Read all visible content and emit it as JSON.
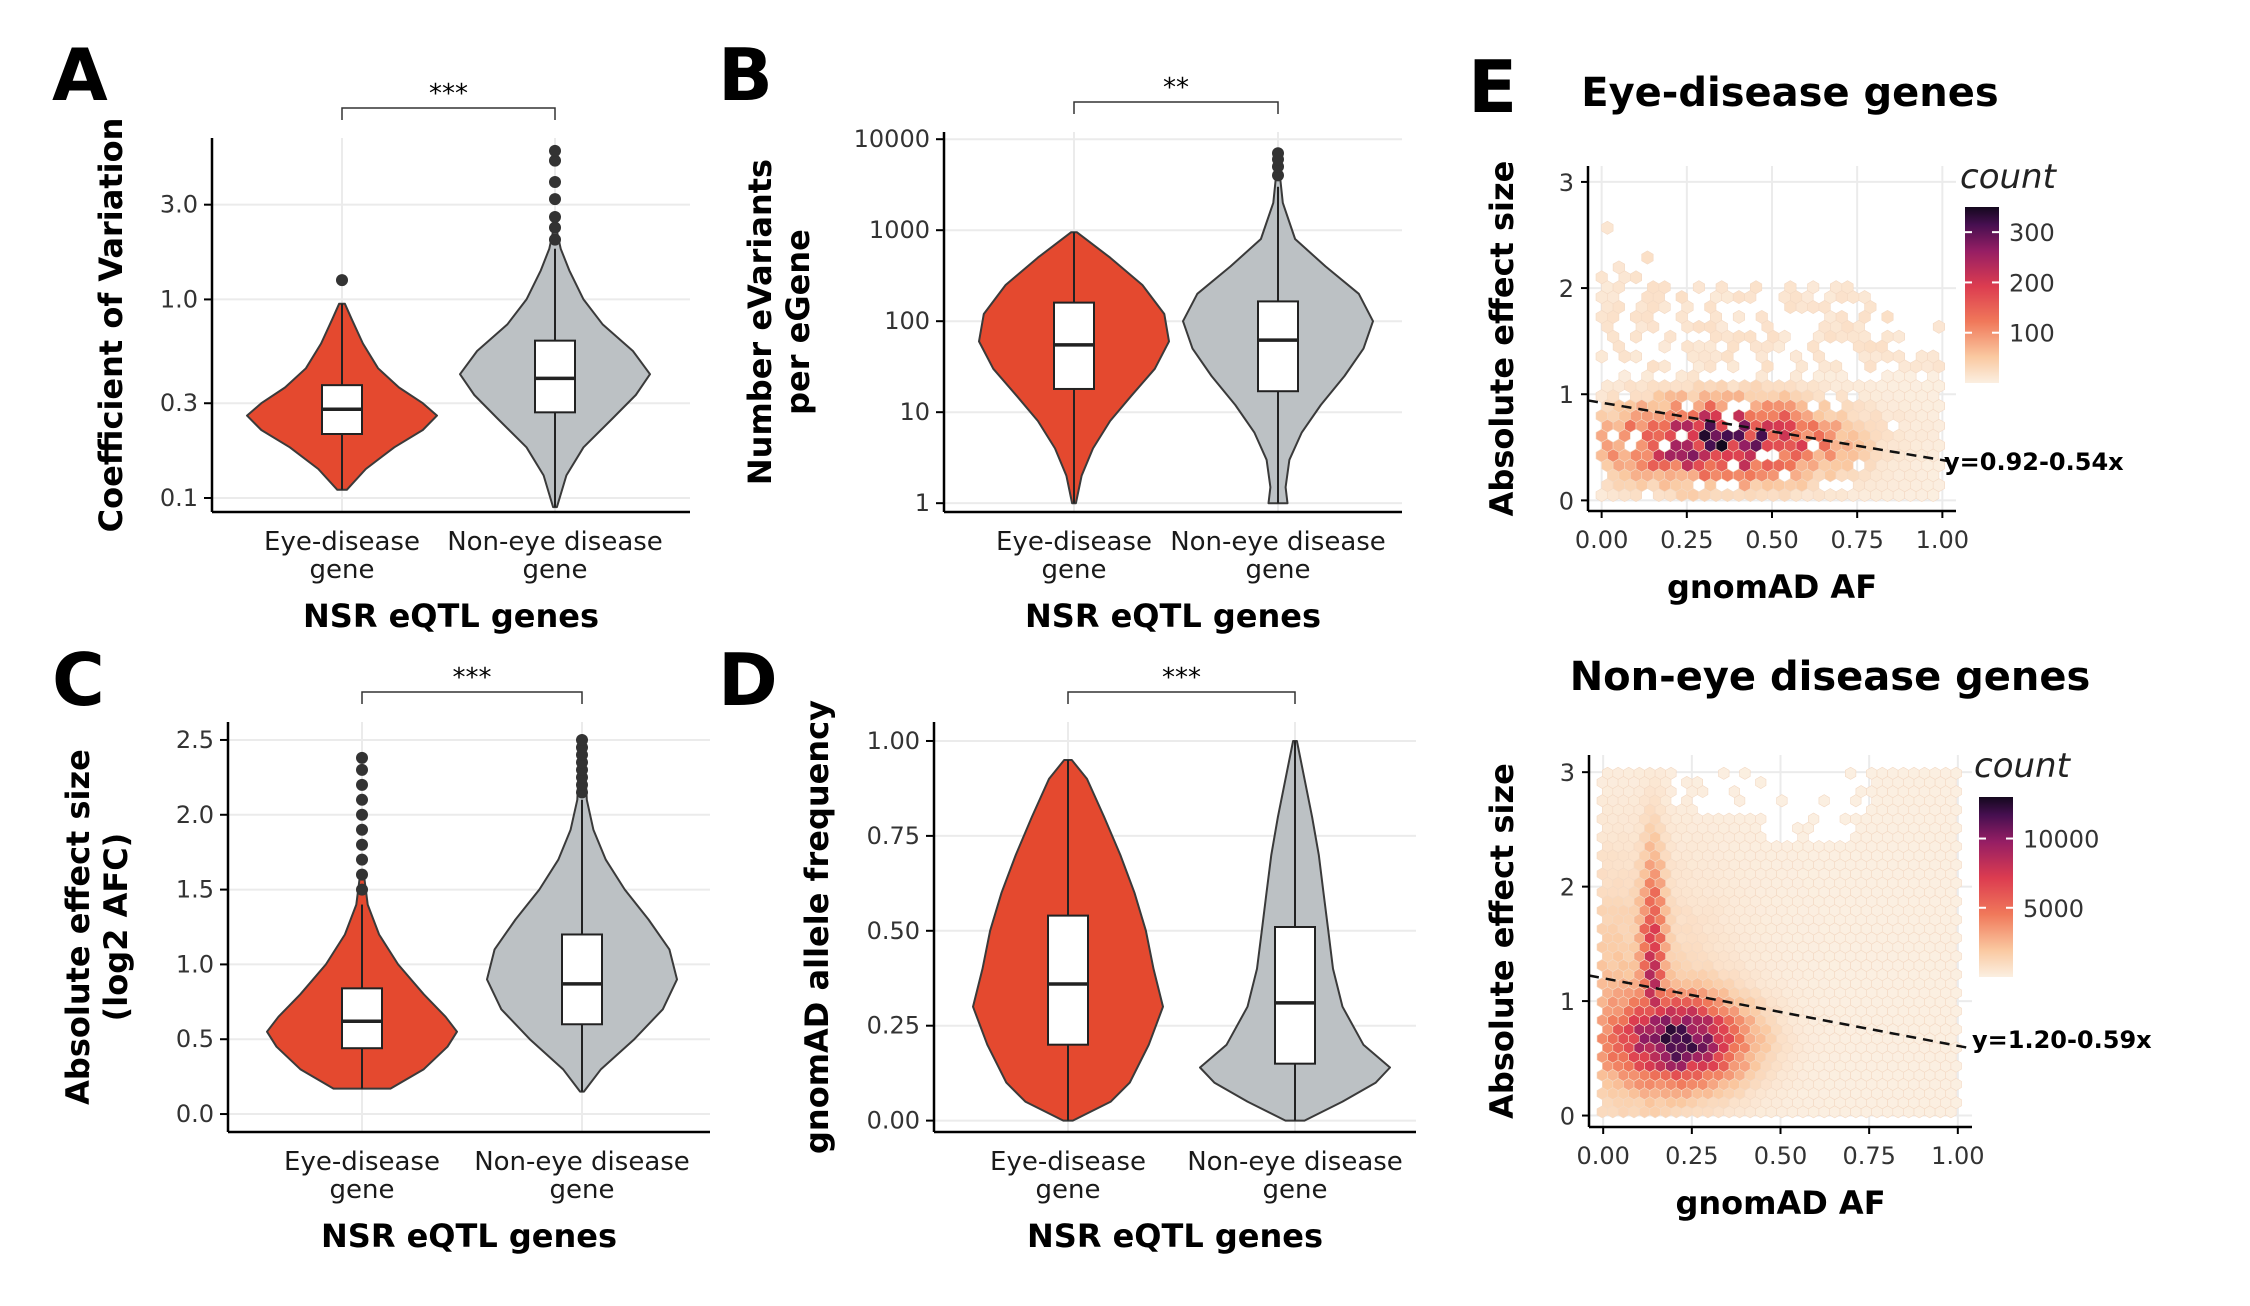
{
  "colors": {
    "eye": "#e4492f",
    "noneye": "#bcc1c4",
    "outline": "#3a3a3a",
    "grid": "#ebebeb",
    "box": "#ffffff"
  },
  "chart_data": [
    {
      "panel": "A",
      "type": "violin",
      "scale": "log",
      "ylabel": "Coefficient of Variation",
      "xlabel": "NSR eQTL genes",
      "ylim": [
        0.085,
        6.5
      ],
      "yticks": [
        0.1,
        0.3,
        1.0,
        3.0
      ],
      "ytick_labels": [
        "0.1",
        "0.3",
        "1.0",
        "3.0"
      ],
      "categories": [
        "Eye-disease\ngene",
        "Non-eye disease\ngene"
      ],
      "significance": "***",
      "series": [
        {
          "name": "Eye-disease gene",
          "min": 0.11,
          "q1": 0.21,
          "median": 0.28,
          "q3": 0.37,
          "max": 0.95,
          "outliers": [
            1.25
          ],
          "density": [
            [
              0.11,
              0.05
            ],
            [
              0.14,
              0.25
            ],
            [
              0.18,
              0.55
            ],
            [
              0.22,
              0.85
            ],
            [
              0.26,
              1.0
            ],
            [
              0.3,
              0.85
            ],
            [
              0.36,
              0.6
            ],
            [
              0.45,
              0.38
            ],
            [
              0.6,
              0.22
            ],
            [
              0.8,
              0.1
            ],
            [
              0.95,
              0.03
            ]
          ]
        },
        {
          "name": "Non-eye disease gene",
          "min": 0.09,
          "q1": 0.27,
          "median": 0.4,
          "q3": 0.62,
          "max": 1.8,
          "outliers": [
            2.0,
            2.3,
            2.6,
            3.2,
            3.9,
            5.0,
            5.6
          ],
          "density": [
            [
              0.09,
              0.02
            ],
            [
              0.13,
              0.12
            ],
            [
              0.18,
              0.3
            ],
            [
              0.25,
              0.6
            ],
            [
              0.33,
              0.85
            ],
            [
              0.42,
              1.0
            ],
            [
              0.55,
              0.82
            ],
            [
              0.75,
              0.5
            ],
            [
              1.0,
              0.3
            ],
            [
              1.4,
              0.15
            ],
            [
              1.8,
              0.06
            ],
            [
              2.2,
              0.02
            ]
          ]
        }
      ]
    },
    {
      "panel": "B",
      "type": "violin",
      "scale": "log",
      "ylabel": "Number eVariants\nper eGene",
      "xlabel": "NSR eQTL genes",
      "ylim": [
        0.8,
        12000
      ],
      "yticks": [
        1,
        10,
        100,
        1000,
        10000
      ],
      "ytick_labels": [
        "1",
        "10",
        "100",
        "1000",
        "10000"
      ],
      "categories": [
        "Eye-disease\ngene",
        "Non-eye disease\ngene"
      ],
      "significance": "**",
      "series": [
        {
          "name": "Eye-disease gene",
          "min": 1,
          "q1": 18,
          "median": 55,
          "q3": 160,
          "max": 950,
          "outliers": [],
          "density": [
            [
              1,
              0.02
            ],
            [
              2,
              0.08
            ],
            [
              4,
              0.2
            ],
            [
              8,
              0.38
            ],
            [
              15,
              0.6
            ],
            [
              30,
              0.85
            ],
            [
              60,
              1.0
            ],
            [
              120,
              0.95
            ],
            [
              250,
              0.72
            ],
            [
              500,
              0.38
            ],
            [
              950,
              0.03
            ]
          ]
        },
        {
          "name": "Non-eye disease gene",
          "min": 1,
          "q1": 17,
          "median": 62,
          "q3": 165,
          "max": 3000,
          "outliers": [
            4000,
            5000,
            6000,
            7000
          ],
          "density": [
            [
              1,
              0.1
            ],
            [
              1.5,
              0.08
            ],
            [
              3,
              0.12
            ],
            [
              6,
              0.25
            ],
            [
              12,
              0.45
            ],
            [
              25,
              0.7
            ],
            [
              50,
              0.9
            ],
            [
              100,
              1.0
            ],
            [
              200,
              0.85
            ],
            [
              400,
              0.5
            ],
            [
              800,
              0.18
            ],
            [
              2000,
              0.05
            ],
            [
              4000,
              0.02
            ]
          ]
        }
      ]
    },
    {
      "panel": "C",
      "type": "violin",
      "scale": "linear",
      "ylabel": "Absolute effect size\n(log2 AFC)",
      "xlabel": "NSR eQTL genes",
      "ylim": [
        -0.12,
        2.62
      ],
      "yticks": [
        0.0,
        0.5,
        1.0,
        1.5,
        2.0,
        2.5
      ],
      "ytick_labels": [
        "0.0",
        "0.5",
        "1.0",
        "1.5",
        "2.0",
        "2.5"
      ],
      "categories": [
        "Eye-disease\ngene",
        "Non-eye disease\ngene"
      ],
      "significance": "***",
      "series": [
        {
          "name": "Eye-disease gene",
          "min": 0.17,
          "q1": 0.44,
          "median": 0.62,
          "q3": 0.84,
          "max": 1.4,
          "outliers": [
            1.5,
            1.6,
            1.7,
            1.8,
            1.9,
            2.0,
            2.1,
            2.2,
            2.3,
            2.38
          ],
          "density": [
            [
              0.17,
              0.3
            ],
            [
              0.3,
              0.65
            ],
            [
              0.45,
              0.9
            ],
            [
              0.55,
              1.0
            ],
            [
              0.65,
              0.88
            ],
            [
              0.8,
              0.65
            ],
            [
              1.0,
              0.38
            ],
            [
              1.2,
              0.18
            ],
            [
              1.4,
              0.06
            ],
            [
              1.6,
              0.02
            ]
          ]
        },
        {
          "name": "Non-eye disease gene",
          "min": 0.15,
          "q1": 0.6,
          "median": 0.87,
          "q3": 1.2,
          "max": 2.1,
          "outliers": [
            2.15,
            2.2,
            2.25,
            2.3,
            2.35,
            2.4,
            2.45,
            2.5
          ],
          "density": [
            [
              0.15,
              0.02
            ],
            [
              0.3,
              0.2
            ],
            [
              0.5,
              0.55
            ],
            [
              0.7,
              0.85
            ],
            [
              0.9,
              1.0
            ],
            [
              1.1,
              0.92
            ],
            [
              1.3,
              0.7
            ],
            [
              1.5,
              0.45
            ],
            [
              1.7,
              0.25
            ],
            [
              1.9,
              0.12
            ],
            [
              2.1,
              0.05
            ],
            [
              2.5,
              0.02
            ]
          ]
        }
      ]
    },
    {
      "panel": "D",
      "type": "violin",
      "scale": "linear",
      "ylabel": "gnomAD allele frequency",
      "xlabel": "NSR eQTL genes",
      "ylim": [
        -0.03,
        1.05
      ],
      "yticks": [
        0.0,
        0.25,
        0.5,
        0.75,
        1.0
      ],
      "ytick_labels": [
        "0.00",
        "0.25",
        "0.50",
        "0.75",
        "1.00"
      ],
      "categories": [
        "Eye-disease\ngene",
        "Non-eye disease\ngene"
      ],
      "significance": "***",
      "series": [
        {
          "name": "Eye-disease gene",
          "min": 0.0,
          "q1": 0.2,
          "median": 0.36,
          "q3": 0.54,
          "max": 0.95,
          "outliers": [],
          "density": [
            [
              0.0,
              0.05
            ],
            [
              0.05,
              0.45
            ],
            [
              0.1,
              0.65
            ],
            [
              0.2,
              0.85
            ],
            [
              0.3,
              1.0
            ],
            [
              0.4,
              0.9
            ],
            [
              0.5,
              0.82
            ],
            [
              0.6,
              0.7
            ],
            [
              0.7,
              0.55
            ],
            [
              0.8,
              0.38
            ],
            [
              0.9,
              0.2
            ],
            [
              0.95,
              0.04
            ]
          ]
        },
        {
          "name": "Non-eye disease gene",
          "min": 0.0,
          "q1": 0.15,
          "median": 0.31,
          "q3": 0.51,
          "max": 1.0,
          "outliers": [],
          "density": [
            [
              0.0,
              0.1
            ],
            [
              0.05,
              0.5
            ],
            [
              0.1,
              0.85
            ],
            [
              0.14,
              1.0
            ],
            [
              0.2,
              0.72
            ],
            [
              0.3,
              0.5
            ],
            [
              0.4,
              0.4
            ],
            [
              0.5,
              0.35
            ],
            [
              0.6,
              0.3
            ],
            [
              0.7,
              0.25
            ],
            [
              0.8,
              0.18
            ],
            [
              0.9,
              0.1
            ],
            [
              1.0,
              0.02
            ]
          ]
        }
      ]
    },
    {
      "panel": "E",
      "type": "heatmap",
      "title": "Eye-disease genes",
      "xlabel": "gnomAD AF",
      "ylabel": "Absolute effect size",
      "xlim": [
        -0.04,
        1.04
      ],
      "ylim": [
        -0.1,
        3.15
      ],
      "xticks": [
        0.0,
        0.25,
        0.5,
        0.75,
        1.0
      ],
      "xtick_labels": [
        "0.00",
        "0.25",
        "0.50",
        "0.75",
        "1.00"
      ],
      "yticks": [
        0,
        1,
        2,
        3
      ],
      "ytick_labels": [
        "0",
        "1",
        "2",
        "3"
      ],
      "legend_title": "count",
      "legend_ticks": [
        100,
        200,
        300
      ],
      "legend_tick_labels": [
        "100",
        "200",
        "300"
      ],
      "count_max": 350,
      "regression": {
        "intercept": 0.92,
        "slope": -0.54
      },
      "equation": "y=0.92-0.54x"
    },
    {
      "panel": "E",
      "type": "heatmap",
      "title": "Non-eye disease genes",
      "xlabel": "gnomAD AF",
      "ylabel": "Absolute effect size",
      "xlim": [
        -0.04,
        1.04
      ],
      "ylim": [
        -0.1,
        3.15
      ],
      "xticks": [
        0.0,
        0.25,
        0.5,
        0.75,
        1.0
      ],
      "xtick_labels": [
        "0.00",
        "0.25",
        "0.50",
        "0.75",
        "1.00"
      ],
      "yticks": [
        0,
        1,
        2,
        3
      ],
      "ytick_labels": [
        "0",
        "1",
        "2",
        "3"
      ],
      "legend_title": "count",
      "legend_ticks": [
        5000,
        10000
      ],
      "legend_tick_labels": [
        "5000",
        "10000"
      ],
      "count_max": 13000,
      "regression": {
        "intercept": 1.2,
        "slope": -0.59
      },
      "equation": "y=1.20-0.59x"
    }
  ]
}
